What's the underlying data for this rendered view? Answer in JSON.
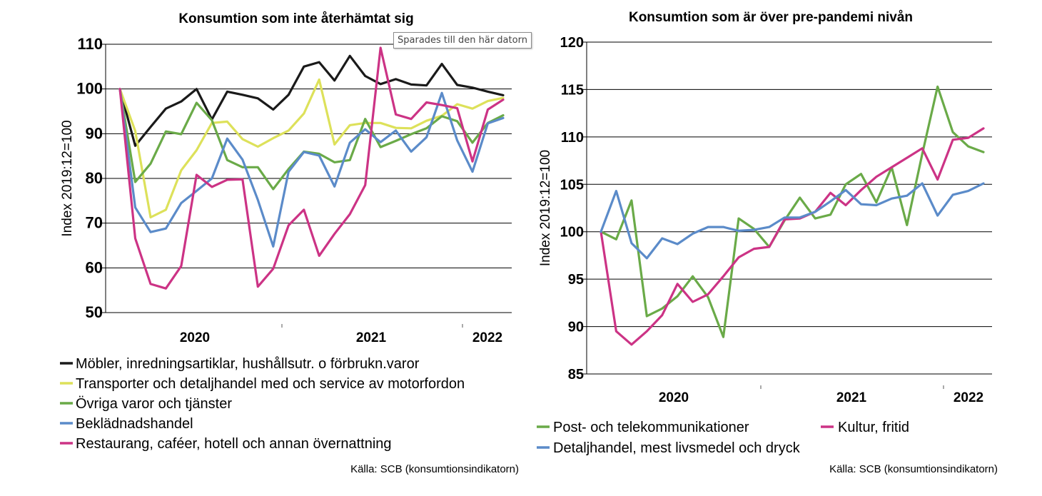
{
  "tooltip": "Sparades till den här datorn",
  "chart_data": [
    {
      "type": "line",
      "title": "Konsumtion som inte återhämtat sig",
      "ylabel": "Index 2019:12=100",
      "ylim": [
        50,
        110
      ],
      "yticks": [
        50,
        60,
        70,
        80,
        90,
        100,
        110
      ],
      "grid": true,
      "x_labels": [
        "2020",
        "2021",
        "2022"
      ],
      "source": "Källa: SCB (konsumtionsindikatorn)",
      "legend_position": "bottom",
      "series": [
        {
          "name": "Möbler, inredningsartiklar, hushållsutr. o förbrukn.varor",
          "color": "#1a1a1a",
          "values": [
            100,
            87.3,
            91.5,
            95.6,
            97.2,
            100,
            93.2,
            99.4,
            98.7,
            97.9,
            95.4,
            98.7,
            105,
            106,
            101.9,
            107.4,
            102.9,
            101.1,
            102.2,
            101,
            100.8,
            105.6,
            100.9,
            100.3,
            99.4,
            98.6
          ]
        },
        {
          "name": "Transporter och detaljhandel med och service av  motorfordon",
          "color": "#dde15a",
          "values": [
            100,
            90.6,
            71.3,
            73,
            81.8,
            86.3,
            92.4,
            92.7,
            88.8,
            87.1,
            89,
            90.7,
            94.5,
            102.1,
            87.6,
            91.9,
            92.4,
            92.4,
            91.3,
            91.2,
            92.9,
            94,
            96.6,
            95.6,
            97.3,
            98
          ]
        },
        {
          "name": "Övriga varor och tjänster",
          "color": "#6aaa48",
          "values": [
            100,
            79.2,
            83.3,
            90.5,
            89.9,
            96.9,
            93,
            84.1,
            82.5,
            82.5,
            77.6,
            82.1,
            86,
            85.5,
            83.6,
            84.1,
            93.3,
            87,
            88.4,
            89.9,
            91.2,
            93.9,
            92.8,
            88,
            92.4,
            94.1
          ]
        },
        {
          "name": "Beklädnadshandel",
          "color": "#5b8bc9",
          "values": [
            100,
            73.5,
            68,
            68.8,
            74.5,
            77.2,
            80,
            88.9,
            84.2,
            75.2,
            64.8,
            81.5,
            85.9,
            85.1,
            78.2,
            88,
            91,
            88.1,
            90.7,
            86,
            89.2,
            99.1,
            88.5,
            81.5,
            92.3,
            93.5
          ]
        },
        {
          "name": "Restaurang, caféer, hotell och annan övernattning",
          "color": "#cc3385",
          "values": [
            100,
            66.6,
            56.4,
            55.4,
            60.4,
            80.8,
            78.1,
            79.7,
            79.8,
            55.8,
            59.8,
            69.5,
            73,
            62.7,
            67.6,
            72,
            78.5,
            109.2,
            94.3,
            93.3,
            97,
            96.4,
            95.7,
            83.8,
            95.4,
            97.6
          ]
        }
      ]
    },
    {
      "type": "line",
      "title": "Konsumtion som är över pre-pandemi nivån",
      "ylabel": "Index 2019:12=100",
      "ylim": [
        85,
        120
      ],
      "yticks": [
        85,
        90,
        95,
        100,
        105,
        110,
        115,
        120
      ],
      "grid": true,
      "x_labels": [
        "2020",
        "2021",
        "2022"
      ],
      "source": "Källa: SCB (konsumtionsindikatorn)",
      "legend_position": "bottom",
      "series": [
        {
          "name": "Post- och telekommunikationer",
          "color": "#6aaa48",
          "values": [
            100,
            99.2,
            103.3,
            91.1,
            91.9,
            93.2,
            95.3,
            93.1,
            88.9,
            101.4,
            100.3,
            98.4,
            101.2,
            103.6,
            101.4,
            101.8,
            105,
            106.1,
            103.1,
            106.8,
            100.7,
            108.2,
            115.3,
            110.5,
            109,
            108.4
          ]
        },
        {
          "name": "Kultur, fritid",
          "color": "#cc3385",
          "values": [
            100,
            89.5,
            88.1,
            89.5,
            91.2,
            94.5,
            92.6,
            93.4,
            95.3,
            97.3,
            98.2,
            98.4,
            101.3,
            101.4,
            102.1,
            104.1,
            102.8,
            104.4,
            105.8,
            106.8,
            107.8,
            108.8,
            105.5,
            109.7,
            109.9,
            110.9
          ]
        },
        {
          "name": "Detaljhandel, mest livsmedel och dryck",
          "color": "#5b8bc9",
          "values": [
            100,
            104.3,
            98.8,
            97.2,
            99.3,
            98.7,
            99.8,
            100.5,
            100.5,
            100.1,
            100.2,
            100.5,
            101.5,
            101.5,
            102.1,
            103.2,
            104.4,
            102.9,
            102.8,
            103.5,
            103.8,
            105.1,
            101.7,
            103.9,
            104.3,
            105.1
          ]
        }
      ]
    }
  ]
}
